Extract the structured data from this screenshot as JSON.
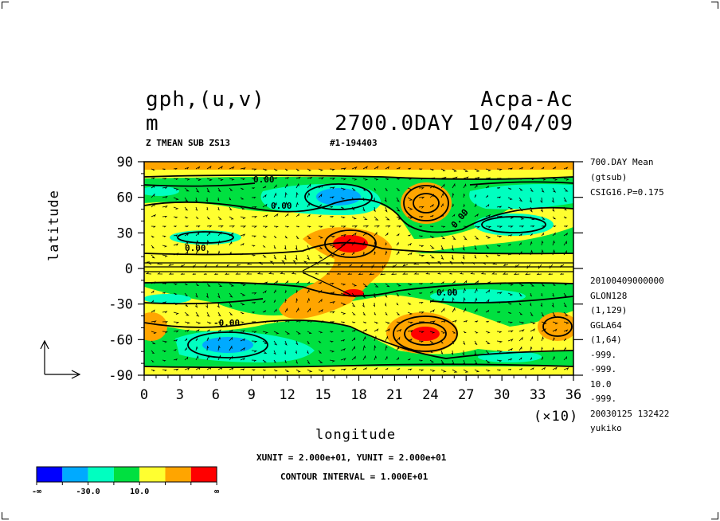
{
  "header": {
    "left_line1": "gph,(u,v)",
    "left_line2": "m",
    "right_line1": "Acpa-Ac",
    "right_line2": "2700.0DAY 10/04/09",
    "sub_left": "Z TMEAN SUB ZS13",
    "sub_mid": "#1-194403"
  },
  "side_info": {
    "top": [
      "700.DAY Mean",
      "(gtsub)",
      "CSIG16.P=0.175"
    ],
    "bottom": [
      "20100409000000",
      "GLON128",
      "(1,129)",
      "GGLA64",
      "(1,64)",
      "-999.",
      "-999.",
      "10.0",
      "-999.",
      "20030125 132422",
      "yukiko"
    ]
  },
  "chart_data": {
    "type": "heatmap",
    "xlabel": "longitude",
    "ylabel": "latitude",
    "x_multiplier": "(×10)",
    "xlim": [
      0,
      36
    ],
    "ylim": [
      -90,
      90
    ],
    "x_ticks": [
      "0",
      "3",
      "6",
      "9",
      "12",
      "15",
      "18",
      "21",
      "24",
      "27",
      "30",
      "33",
      "36"
    ],
    "y_ticks": [
      "90",
      "60",
      "30",
      "0",
      "-30",
      "-60",
      "-90"
    ],
    "contour_labels": [
      "0.00",
      "0.00",
      "0.00",
      "0.00",
      "0.00",
      "-0.00"
    ],
    "unit_note": "XUNIT = 2.000e+01, YUNIT = 2.000e+01",
    "contour_interval": "CONTOUR INTERVAL = 1.000E+01",
    "colorbar": {
      "colors": [
        "#0000ff",
        "#00aaff",
        "#00ffc0",
        "#00e040",
        "#ffff30",
        "#ffa500",
        "#ff0000"
      ],
      "labels": [
        "-∞",
        "-30.0",
        "10.0",
        "∞"
      ]
    }
  }
}
